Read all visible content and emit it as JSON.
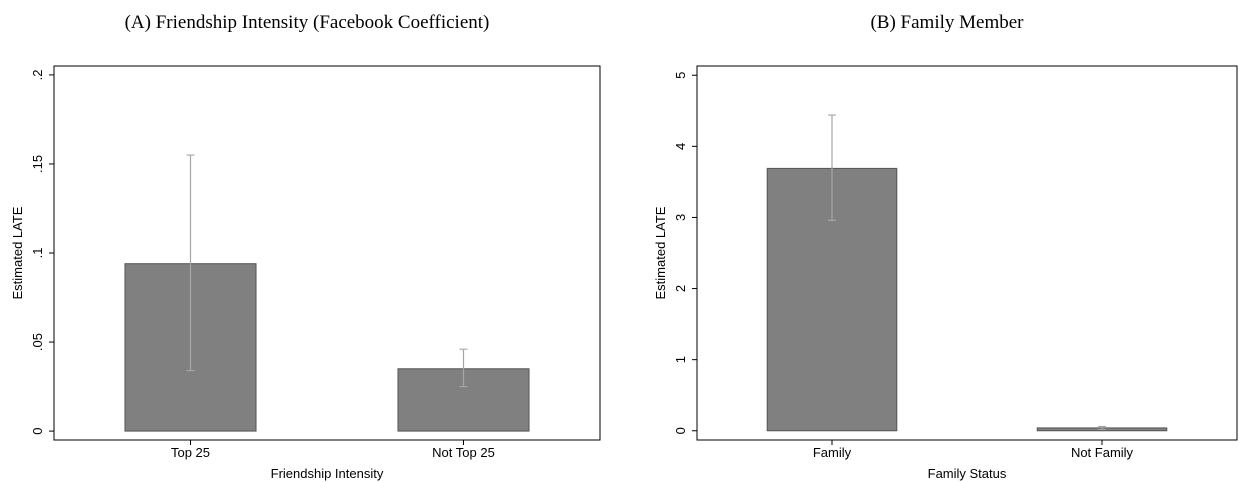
{
  "chart_data": [
    {
      "type": "bar",
      "title": "(A) Friendship Intensity (Facebook Coefficient)",
      "ylabel": "Estimated LATE",
      "xlabel": "Friendship Intensity",
      "categories": [
        "Top 25",
        "Not Top 25"
      ],
      "values": [
        0.094,
        0.035
      ],
      "ci_low": [
        0.034,
        0.025
      ],
      "ci_high": [
        0.155,
        0.046
      ],
      "color": "#808080",
      "error_color": "#a6a6a6",
      "ylim": [
        -0.005,
        0.205
      ],
      "yticks": [
        0,
        {
          "value": 0.05,
          "label": ".05"
        },
        {
          "value": 0.1,
          "label": ".1"
        },
        {
          "value": 0.15,
          "label": ".15"
        },
        {
          "value": 0.2,
          "label": ".2"
        }
      ]
    },
    {
      "type": "bar",
      "title": "(B) Family Member",
      "ylabel": "Estimated LATE",
      "xlabel": "Family Status",
      "categories": [
        "Family",
        "Not Family"
      ],
      "values": [
        3.69,
        0.04
      ],
      "ci_low": [
        2.96,
        0.02
      ],
      "ci_high": [
        4.44,
        0.06
      ],
      "color": "#808080",
      "error_color": "#a6a6a6",
      "ylim": [
        -0.13,
        5.13
      ],
      "yticks": [
        0,
        1,
        2,
        3,
        4,
        5
      ]
    }
  ]
}
